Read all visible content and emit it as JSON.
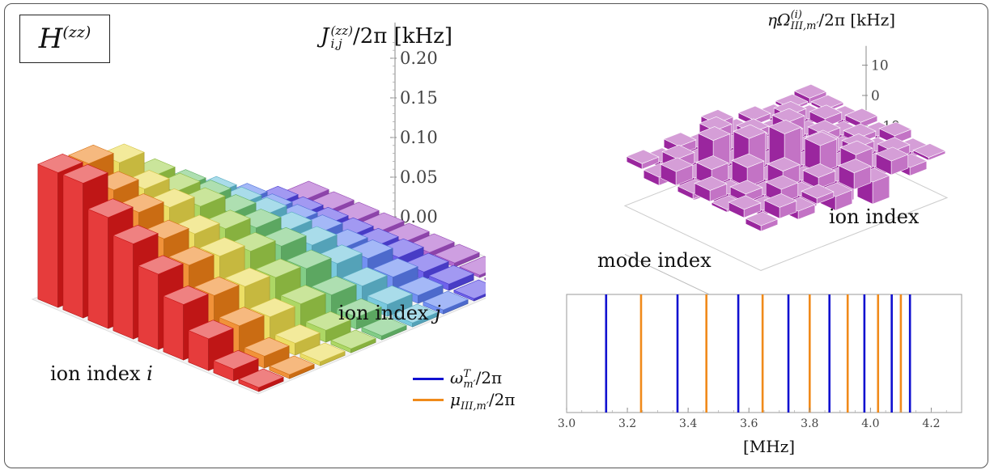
{
  "box_label": {
    "base": "H",
    "sup": "(zz)"
  },
  "left_chart": {
    "zlabel": {
      "pre": "J",
      "sup": "(zz)",
      "sub": "i,j",
      "post": "/2π [kHz]"
    },
    "ticks": [
      "0.20",
      "0.15",
      "0.10",
      "0.05",
      "0.00"
    ],
    "xlabel": {
      "text": "ion index ",
      "var": "i"
    },
    "ylabel": {
      "text": "ion index ",
      "var": "j"
    }
  },
  "right_chart": {
    "zlabel": {
      "pre": "ηΩ",
      "sup": "(i)",
      "sub": "III,m′",
      "post": "/2π [kHz]"
    },
    "ticks": [
      "10",
      "0",
      "−10"
    ],
    "xlabel": "mode index",
    "ylabel": "ion index"
  },
  "spectrum": {
    "xlabel": "[MHz]",
    "ticks": [
      "3.0",
      "3.2",
      "3.4",
      "3.6",
      "3.8",
      "4.0",
      "4.2"
    ],
    "legend": [
      {
        "pre": "ω",
        "sup": "T",
        "sub": "m′",
        "post": "/2π",
        "color": "#1010d0"
      },
      {
        "pre": "μ",
        "sup": "",
        "sub": "III,m′",
        "post": "/2π",
        "color": "#f08a1a"
      }
    ]
  },
  "chart_data": [
    {
      "type": "bar",
      "zlim": [
        0,
        0.22
      ],
      "ion_colors": [
        "#e11a1a",
        "#ee7f16",
        "#e9d84a",
        "#9fd04a",
        "#6cc472",
        "#63bfd8",
        "#5a7df0",
        "#5546e8",
        "#a650c8"
      ],
      "rows": [
        [
          0.17,
          0.165,
          0.15,
          0.115,
          0.085,
          0.06,
          0.035,
          0.015,
          0.005
        ],
        [
          0.17,
          0.145,
          0.13,
          0.11,
          0.085,
          0.06,
          0.035,
          0.015,
          0.005
        ],
        [
          0.14,
          0.13,
          0.12,
          0.105,
          0.08,
          0.06,
          0.035,
          0.015,
          0.005
        ],
        [
          0.12,
          0.11,
          0.1,
          0.09,
          0.075,
          0.055,
          0.035,
          0.015,
          0.005
        ],
        [
          0.095,
          0.09,
          0.085,
          0.075,
          0.065,
          0.05,
          0.03,
          0.015,
          0.005
        ],
        [
          0.07,
          0.065,
          0.06,
          0.055,
          0.05,
          0.04,
          0.03,
          0.015,
          0.005
        ],
        [
          0.04,
          0.04,
          0.035,
          0.035,
          0.03,
          0.025,
          0.02,
          0.01,
          0.005
        ],
        [
          0.015,
          0.015,
          0.015,
          0.015,
          0.015,
          0.015,
          0.01,
          0.008,
          0.003
        ],
        [
          0.005,
          0.005,
          0.005,
          0.005,
          0.005,
          0.005,
          0.005,
          0.003,
          0.002
        ]
      ]
    },
    {
      "type": "bar",
      "zlim": [
        -15,
        15
      ],
      "color": "#a228a6",
      "rows": [
        [
          2,
          -2,
          3,
          -3,
          6,
          -4,
          2,
          -1,
          1,
          2
        ],
        [
          -3,
          4,
          -6,
          9,
          -5,
          3,
          -2,
          4,
          -2,
          1
        ],
        [
          5,
          -8,
          11,
          -14,
          6,
          -3,
          7,
          -5,
          3,
          -2
        ],
        [
          -2,
          6,
          -9,
          12,
          -4,
          8,
          -6,
          3,
          -4,
          2
        ],
        [
          4,
          -5,
          7,
          -10,
          14,
          -7,
          5,
          -3,
          2,
          -1
        ],
        [
          -1,
          3,
          -4,
          6,
          -8,
          10,
          -5,
          4,
          -2,
          3
        ],
        [
          3,
          -2,
          5,
          -6,
          4,
          -9,
          7,
          -4,
          3,
          -2
        ],
        [
          -2,
          4,
          -3,
          2,
          -5,
          6,
          -8,
          5,
          -3,
          1
        ]
      ]
    },
    {
      "type": "vlines",
      "xlim": [
        3.0,
        4.3
      ],
      "series": [
        {
          "values": [
            3.13,
            3.365,
            3.565,
            3.73,
            3.865,
            3.98,
            4.07,
            4.13
          ],
          "color": "#1010d0"
        },
        {
          "values": [
            3.245,
            3.46,
            3.645,
            3.8,
            3.925,
            4.025,
            4.1
          ],
          "color": "#f08a1a"
        }
      ]
    }
  ]
}
